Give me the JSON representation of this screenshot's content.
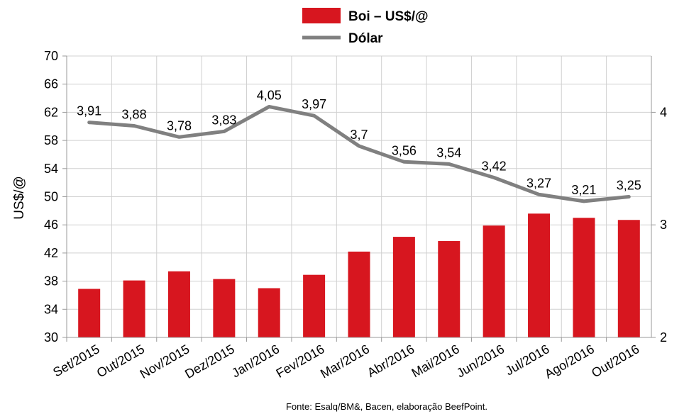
{
  "chart_data": {
    "type": "bar",
    "categories": [
      "Set/2015",
      "Out/2015",
      "Nov/2015",
      "Dez/2015",
      "Jan/2016",
      "Fev/2016",
      "Mar/2016",
      "Abr/2016",
      "Mai/2016",
      "Jun/2016",
      "Jul/2016",
      "Ago/2016",
      "Out/2016"
    ],
    "series": [
      {
        "name": "Boi – US$/@",
        "type": "bar",
        "axis": "left",
        "color": "#d7161f",
        "values": [
          36.9,
          38.1,
          39.4,
          38.3,
          37.0,
          38.9,
          42.2,
          44.3,
          43.7,
          45.9,
          47.6,
          47.0,
          46.7
        ]
      },
      {
        "name": "Dólar",
        "type": "line",
        "axis": "right",
        "color": "#808080",
        "values": [
          3.91,
          3.88,
          3.78,
          3.83,
          4.05,
          3.97,
          3.7,
          3.56,
          3.54,
          3.42,
          3.27,
          3.21,
          3.25
        ],
        "labels": [
          "3,91",
          "3,88",
          "3,78",
          "3,83",
          "4,05",
          "3,97",
          "3,7",
          "3,56",
          "3,54",
          "3,42",
          "3,27",
          "3,21",
          "3,25"
        ]
      }
    ],
    "ylabel": "US$/@",
    "ylim": [
      30,
      70
    ],
    "yticks": [
      "30",
      "34",
      "38",
      "42",
      "46",
      "50",
      "54",
      "58",
      "62",
      "66",
      "70"
    ],
    "y2lim": [
      2,
      4.5
    ],
    "y2ticks": [
      "2",
      "3",
      "4"
    ],
    "grid": true,
    "legend_position": "top-center",
    "source": "Fonte:  Esalq/BM&,  Bacen,  elaboração  BeefPoint."
  }
}
